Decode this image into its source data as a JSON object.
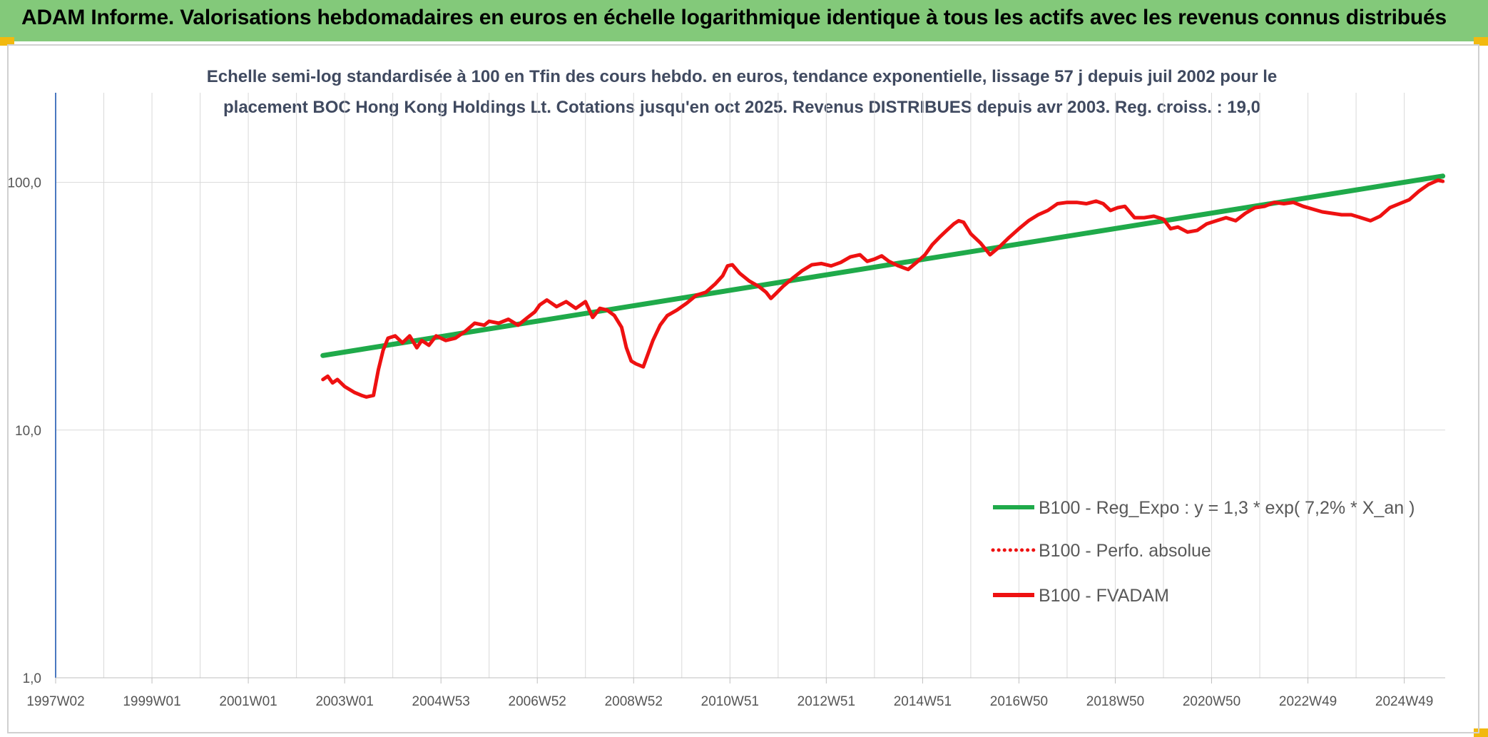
{
  "banner": {
    "title": "ADAM Informe. Valorisations hebdomadaires en euros en échelle logarithmique identique à tous les actifs avec les revenus connus distribués"
  },
  "colors": {
    "banner": "#83c97a",
    "corner": "#f2b90f",
    "trend": "#1faa4a",
    "fvadam": "#ee1111",
    "axis": "#4a78c0",
    "grid": "#d9d9d9"
  },
  "chart_data": {
    "type": "line",
    "title_line1": "Echelle semi-log standardisée à 100 en Tfin des cours hebdo. en euros, tendance exponentielle, lissage 57 j depuis juil 2002 pour le",
    "title_line2": "placement BOC Hong Kong Holdings Lt. Cotations jusqu'en oct 2025. Revenus DISTRIBUES depuis avr 2003. Reg. croiss. : 19,0",
    "y_scale": "log",
    "ylim": [
      1,
      100
    ],
    "y_ticks": [
      {
        "value": 100,
        "label": "100,0"
      },
      {
        "value": 10,
        "label": "10,0"
      },
      {
        "value": 1,
        "label": "1,0"
      }
    ],
    "xlim": [
      1997.0,
      2025.85
    ],
    "x_ticks": [
      {
        "year": 1997.0,
        "label": "1997W02"
      },
      {
        "year": 1999.0,
        "label": "1999W01"
      },
      {
        "year": 2001.0,
        "label": "2001W01"
      },
      {
        "year": 2003.0,
        "label": "2003W01"
      },
      {
        "year": 2005.0,
        "label": "2004W53"
      },
      {
        "year": 2007.0,
        "label": "2006W52"
      },
      {
        "year": 2009.0,
        "label": "2008W52"
      },
      {
        "year": 2011.0,
        "label": "2010W51"
      },
      {
        "year": 2013.0,
        "label": "2012W51"
      },
      {
        "year": 2015.0,
        "label": "2014W51"
      },
      {
        "year": 2017.0,
        "label": "2016W50"
      },
      {
        "year": 2019.0,
        "label": "2018W50"
      },
      {
        "year": 2021.0,
        "label": "2020W50"
      },
      {
        "year": 2023.0,
        "label": "2022W49"
      },
      {
        "year": 2025.0,
        "label": "2024W49"
      }
    ],
    "grid": true,
    "legend_position": "bottom-right",
    "series": [
      {
        "name": "B100 - Reg_Expo : y = 1,3 * exp( 7,2% *  X_an )",
        "style": "solid",
        "x": [
          2002.55,
          2025.8
        ],
        "y": [
          20.0,
          106.0
        ]
      },
      {
        "name": "B100 - Perfo. absolue",
        "style": "dotted",
        "x": [],
        "y": []
      },
      {
        "name": "B100 - FVADAM",
        "style": "solid",
        "x": [
          2002.55,
          2002.65,
          2002.75,
          2002.85,
          2003.0,
          2003.2,
          2003.35,
          2003.45,
          2003.6,
          2003.7,
          2003.8,
          2003.9,
          2004.05,
          2004.2,
          2004.35,
          2004.5,
          2004.6,
          2004.75,
          2004.9,
          2005.1,
          2005.3,
          2005.5,
          2005.7,
          2005.9,
          2006.0,
          2006.2,
          2006.4,
          2006.6,
          2006.8,
          2006.95,
          2007.05,
          2007.2,
          2007.4,
          2007.6,
          2007.8,
          2008.0,
          2008.15,
          2008.3,
          2008.45,
          2008.6,
          2008.75,
          2008.85,
          2008.95,
          2009.05,
          2009.2,
          2009.4,
          2009.55,
          2009.7,
          2009.9,
          2010.1,
          2010.3,
          2010.5,
          2010.7,
          2010.85,
          2010.95,
          2011.05,
          2011.2,
          2011.4,
          2011.6,
          2011.75,
          2011.85,
          2011.95,
          2012.1,
          2012.3,
          2012.5,
          2012.7,
          2012.9,
          2013.1,
          2013.3,
          2013.5,
          2013.7,
          2013.85,
          2014.0,
          2014.15,
          2014.3,
          2014.5,
          2014.7,
          2014.9,
          2015.05,
          2015.2,
          2015.35,
          2015.5,
          2015.65,
          2015.75,
          2015.85,
          2016.0,
          2016.2,
          2016.4,
          2016.6,
          2016.8,
          2017.0,
          2017.2,
          2017.4,
          2017.6,
          2017.8,
          2018.0,
          2018.2,
          2018.4,
          2018.6,
          2018.75,
          2018.9,
          2019.05,
          2019.2,
          2019.4,
          2019.6,
          2019.8,
          2020.0,
          2020.15,
          2020.3,
          2020.5,
          2020.7,
          2020.9,
          2021.1,
          2021.3,
          2021.5,
          2021.7,
          2021.9,
          2022.1,
          2022.3,
          2022.5,
          2022.7,
          2022.9,
          2023.1,
          2023.3,
          2023.5,
          2023.7,
          2023.9,
          2024.1,
          2024.3,
          2024.5,
          2024.7,
          2024.9,
          2025.1,
          2025.3,
          2025.5,
          2025.7,
          2025.8
        ],
        "y": [
          16.0,
          16.5,
          15.5,
          16.0,
          15.0,
          14.2,
          13.8,
          13.6,
          13.8,
          17.5,
          21.0,
          23.5,
          24.0,
          22.5,
          24.0,
          21.5,
          23.0,
          22.0,
          24.0,
          23.0,
          23.5,
          25.0,
          27.0,
          26.5,
          27.5,
          27.0,
          28.0,
          26.5,
          28.5,
          30.0,
          32.0,
          33.5,
          31.5,
          33.0,
          31.0,
          33.0,
          28.5,
          31.0,
          30.5,
          29.0,
          26.0,
          21.5,
          19.0,
          18.5,
          18.0,
          23.0,
          26.5,
          29.0,
          30.5,
          32.5,
          35.0,
          36.0,
          39.0,
          42.0,
          46.0,
          46.5,
          43.0,
          40.0,
          38.0,
          36.0,
          34.0,
          35.5,
          38.0,
          41.0,
          44.0,
          46.5,
          47.0,
          46.0,
          47.5,
          50.0,
          51.0,
          48.0,
          49.0,
          50.5,
          48.0,
          46.0,
          44.5,
          48.0,
          51.0,
          56.0,
          60.0,
          64.0,
          68.0,
          70.0,
          69.0,
          62.0,
          57.0,
          51.0,
          55.0,
          60.0,
          65.0,
          70.0,
          74.0,
          77.0,
          82.0,
          83.0,
          83.0,
          82.0,
          84.0,
          82.0,
          77.0,
          79.0,
          80.0,
          72.0,
          72.0,
          73.0,
          71.0,
          65.0,
          66.0,
          63.0,
          64.0,
          68.0,
          70.0,
          72.0,
          70.0,
          75.0,
          79.0,
          80.0,
          83.0,
          82.0,
          83.0,
          80.0,
          78.0,
          76.0,
          75.0,
          74.0,
          74.0,
          72.0,
          70.0,
          73.0,
          79.0,
          82.0,
          85.0,
          92.0,
          98.0,
          102.0,
          101.0
        ]
      }
    ]
  }
}
